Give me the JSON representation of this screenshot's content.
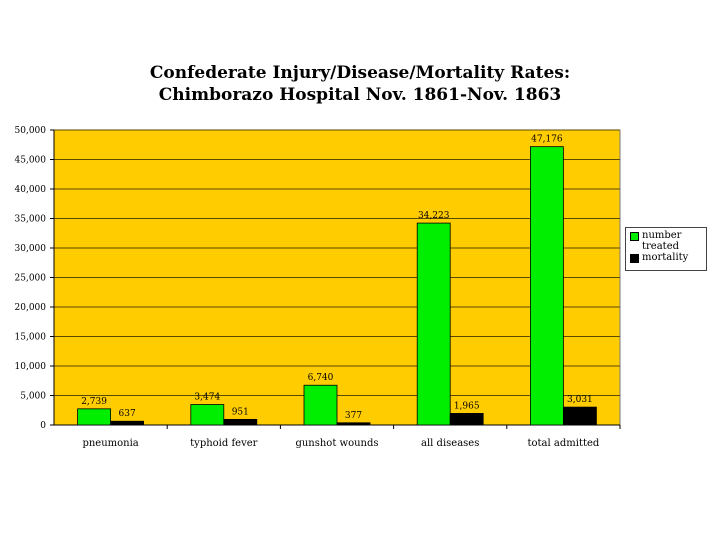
{
  "chart_data": {
    "type": "bar",
    "title": [
      "Confederate Injury/Disease/Mortality Rates:",
      "Chimborazo Hospital Nov. 1861-Nov. 1863"
    ],
    "xlabel": "",
    "ylabel": "",
    "ylim": [
      0,
      50000
    ],
    "yticks": [
      "0",
      "5,000",
      "10,000",
      "15,000",
      "20,000",
      "25,000",
      "30,000",
      "35,000",
      "40,000",
      "45,000",
      "50,000"
    ],
    "categories": [
      "pneumonia",
      "typhoid fever",
      "gunshot wounds",
      "all diseases",
      "total admitted"
    ],
    "series": [
      {
        "name": "number treated",
        "color": "#00EE00",
        "values": [
          2739,
          3474,
          6740,
          34223,
          47176
        ],
        "labels": [
          "2,739",
          "3,474",
          "6,740",
          "34,223",
          "47,176"
        ]
      },
      {
        "name": "mortality",
        "color": "#000000",
        "values": [
          637,
          951,
          377,
          1965,
          3031
        ],
        "labels": [
          "637",
          "951",
          "377",
          "1,965",
          "3,031"
        ]
      }
    ],
    "grid": true,
    "legend_position": "right",
    "plot_background": "#FFCC00"
  }
}
